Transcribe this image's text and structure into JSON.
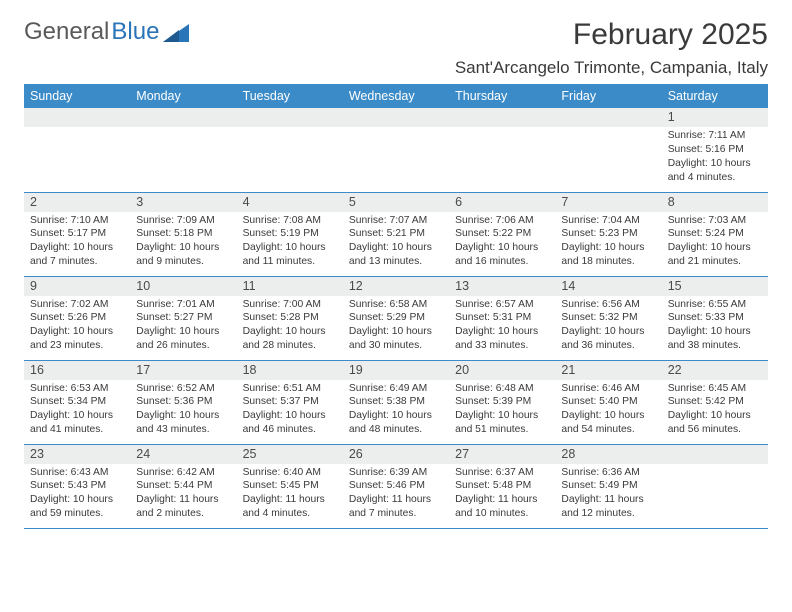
{
  "brand": {
    "text1": "General",
    "text2": "Blue"
  },
  "title": "February 2025",
  "location": "Sant'Arcangelo Trimonte, Campania, Italy",
  "accent_color": "#3b8bc8",
  "gray_bg": "#eceded",
  "weekdays": [
    "Sunday",
    "Monday",
    "Tuesday",
    "Wednesday",
    "Thursday",
    "Friday",
    "Saturday"
  ],
  "weeks": [
    [
      {
        "n": "",
        "empty": true
      },
      {
        "n": "",
        "empty": true
      },
      {
        "n": "",
        "empty": true
      },
      {
        "n": "",
        "empty": true
      },
      {
        "n": "",
        "empty": true
      },
      {
        "n": "",
        "empty": true
      },
      {
        "n": "1",
        "sunrise": "7:11 AM",
        "sunset": "5:16 PM",
        "daylight": "10 hours and 4 minutes."
      }
    ],
    [
      {
        "n": "2",
        "sunrise": "7:10 AM",
        "sunset": "5:17 PM",
        "daylight": "10 hours and 7 minutes."
      },
      {
        "n": "3",
        "sunrise": "7:09 AM",
        "sunset": "5:18 PM",
        "daylight": "10 hours and 9 minutes."
      },
      {
        "n": "4",
        "sunrise": "7:08 AM",
        "sunset": "5:19 PM",
        "daylight": "10 hours and 11 minutes."
      },
      {
        "n": "5",
        "sunrise": "7:07 AM",
        "sunset": "5:21 PM",
        "daylight": "10 hours and 13 minutes."
      },
      {
        "n": "6",
        "sunrise": "7:06 AM",
        "sunset": "5:22 PM",
        "daylight": "10 hours and 16 minutes."
      },
      {
        "n": "7",
        "sunrise": "7:04 AM",
        "sunset": "5:23 PM",
        "daylight": "10 hours and 18 minutes."
      },
      {
        "n": "8",
        "sunrise": "7:03 AM",
        "sunset": "5:24 PM",
        "daylight": "10 hours and 21 minutes."
      }
    ],
    [
      {
        "n": "9",
        "sunrise": "7:02 AM",
        "sunset": "5:26 PM",
        "daylight": "10 hours and 23 minutes."
      },
      {
        "n": "10",
        "sunrise": "7:01 AM",
        "sunset": "5:27 PM",
        "daylight": "10 hours and 26 minutes."
      },
      {
        "n": "11",
        "sunrise": "7:00 AM",
        "sunset": "5:28 PM",
        "daylight": "10 hours and 28 minutes."
      },
      {
        "n": "12",
        "sunrise": "6:58 AM",
        "sunset": "5:29 PM",
        "daylight": "10 hours and 30 minutes."
      },
      {
        "n": "13",
        "sunrise": "6:57 AM",
        "sunset": "5:31 PM",
        "daylight": "10 hours and 33 minutes."
      },
      {
        "n": "14",
        "sunrise": "6:56 AM",
        "sunset": "5:32 PM",
        "daylight": "10 hours and 36 minutes."
      },
      {
        "n": "15",
        "sunrise": "6:55 AM",
        "sunset": "5:33 PM",
        "daylight": "10 hours and 38 minutes."
      }
    ],
    [
      {
        "n": "16",
        "sunrise": "6:53 AM",
        "sunset": "5:34 PM",
        "daylight": "10 hours and 41 minutes."
      },
      {
        "n": "17",
        "sunrise": "6:52 AM",
        "sunset": "5:36 PM",
        "daylight": "10 hours and 43 minutes."
      },
      {
        "n": "18",
        "sunrise": "6:51 AM",
        "sunset": "5:37 PM",
        "daylight": "10 hours and 46 minutes."
      },
      {
        "n": "19",
        "sunrise": "6:49 AM",
        "sunset": "5:38 PM",
        "daylight": "10 hours and 48 minutes."
      },
      {
        "n": "20",
        "sunrise": "6:48 AM",
        "sunset": "5:39 PM",
        "daylight": "10 hours and 51 minutes."
      },
      {
        "n": "21",
        "sunrise": "6:46 AM",
        "sunset": "5:40 PM",
        "daylight": "10 hours and 54 minutes."
      },
      {
        "n": "22",
        "sunrise": "6:45 AM",
        "sunset": "5:42 PM",
        "daylight": "10 hours and 56 minutes."
      }
    ],
    [
      {
        "n": "23",
        "sunrise": "6:43 AM",
        "sunset": "5:43 PM",
        "daylight": "10 hours and 59 minutes."
      },
      {
        "n": "24",
        "sunrise": "6:42 AM",
        "sunset": "5:44 PM",
        "daylight": "11 hours and 2 minutes."
      },
      {
        "n": "25",
        "sunrise": "6:40 AM",
        "sunset": "5:45 PM",
        "daylight": "11 hours and 4 minutes."
      },
      {
        "n": "26",
        "sunrise": "6:39 AM",
        "sunset": "5:46 PM",
        "daylight": "11 hours and 7 minutes."
      },
      {
        "n": "27",
        "sunrise": "6:37 AM",
        "sunset": "5:48 PM",
        "daylight": "11 hours and 10 minutes."
      },
      {
        "n": "28",
        "sunrise": "6:36 AM",
        "sunset": "5:49 PM",
        "daylight": "11 hours and 12 minutes."
      },
      {
        "n": "",
        "empty": true
      }
    ]
  ],
  "labels": {
    "sunrise": "Sunrise: ",
    "sunset": "Sunset: ",
    "daylight": "Daylight: "
  }
}
